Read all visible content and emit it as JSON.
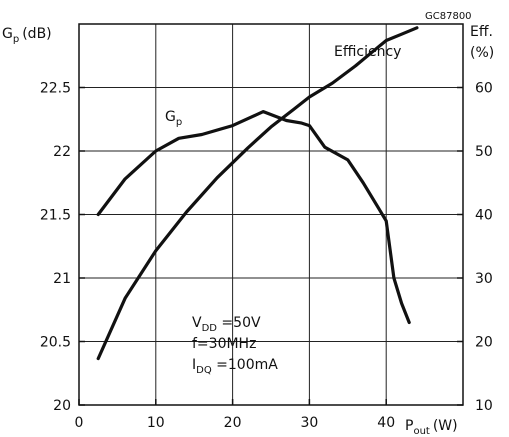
{
  "chart_data": {
    "type": "line",
    "figure_code": "GC87800",
    "x": {
      "label_main": "P",
      "label_sub": "out",
      "label_unit": "(W)",
      "ticks": [
        0,
        10,
        20,
        30,
        40
      ],
      "range": [
        0,
        50
      ]
    },
    "y_left": {
      "label_main": "G",
      "label_sub": "p",
      "label_unit": "(dB)",
      "ticks": [
        "20",
        "20.5",
        "21",
        "21.5",
        "22",
        "22.5"
      ],
      "range": [
        20,
        23
      ]
    },
    "y_right": {
      "label_line1": "Eff.",
      "label_line2": "(%)",
      "ticks": [
        "10",
        "20",
        "30",
        "40",
        "50",
        "60"
      ],
      "range": [
        10,
        70
      ]
    },
    "grid": true,
    "series": [
      {
        "name": "G",
        "name_sub": "p",
        "axis": "left",
        "points": [
          [
            2.5,
            21.5
          ],
          [
            6,
            21.78
          ],
          [
            10,
            22.0
          ],
          [
            13,
            22.1
          ],
          [
            16,
            22.13
          ],
          [
            20,
            22.2
          ],
          [
            24,
            22.31
          ],
          [
            27,
            22.24
          ],
          [
            29,
            22.22
          ],
          [
            30,
            22.2
          ],
          [
            32,
            22.03
          ],
          [
            35,
            21.93
          ],
          [
            37,
            21.75
          ],
          [
            39,
            21.55
          ],
          [
            40,
            21.45
          ],
          [
            41,
            21.0
          ],
          [
            42,
            20.8
          ],
          [
            43,
            20.65
          ]
        ]
      },
      {
        "name": "Efficiency",
        "axis": "right",
        "points": [
          [
            2.5,
            17.3
          ],
          [
            6,
            26.8
          ],
          [
            10,
            34.3
          ],
          [
            14,
            40.4
          ],
          [
            18,
            45.8
          ],
          [
            22,
            50.5
          ],
          [
            25,
            53.8
          ],
          [
            28,
            56.6
          ],
          [
            30,
            58.5
          ],
          [
            33,
            60.7
          ],
          [
            36,
            63.4
          ],
          [
            38,
            65.4
          ],
          [
            40,
            67.4
          ],
          [
            42,
            68.4
          ],
          [
            44,
            69.4
          ]
        ]
      }
    ],
    "annotation": [
      {
        "main": "V",
        "sub": "DD",
        "rest": " =50V"
      },
      {
        "main": "f=30MHz",
        "sub": "",
        "rest": ""
      },
      {
        "main": "I",
        "sub": "DQ",
        "rest": " =100mA"
      }
    ]
  }
}
